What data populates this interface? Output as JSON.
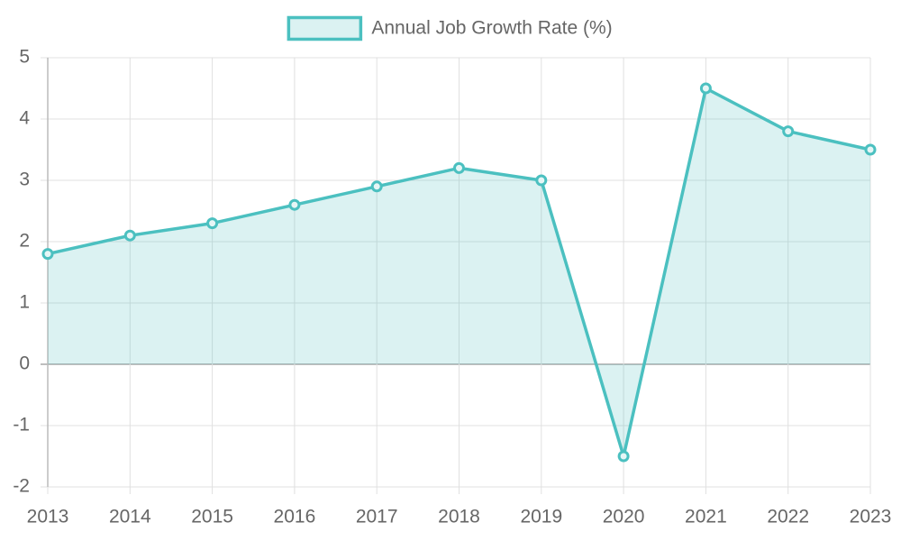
{
  "chart_data": {
    "type": "line",
    "categories": [
      "2013",
      "2014",
      "2015",
      "2016",
      "2017",
      "2018",
      "2019",
      "2020",
      "2021",
      "2022",
      "2023"
    ],
    "series": [
      {
        "name": "Annual Job Growth Rate (%)",
        "color": "#4bc0c0",
        "values": [
          1.8,
          2.1,
          2.3,
          2.6,
          2.9,
          3.2,
          3.0,
          -1.5,
          4.5,
          3.8,
          3.5
        ]
      }
    ],
    "ylim": [
      -2,
      5
    ],
    "yticks": [
      -2,
      -1,
      0,
      1,
      2,
      3,
      4,
      5
    ],
    "grid": true,
    "fill": true,
    "legend": "top"
  }
}
